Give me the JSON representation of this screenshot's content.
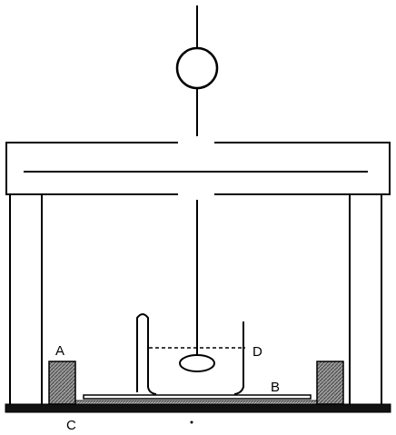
{
  "labels": {
    "a": "A",
    "b": "B",
    "c": "C",
    "d": "D"
  },
  "colors": {
    "ink": "#000000",
    "hatch_fill": "#8a8a8a",
    "background": "#ffffff"
  }
}
